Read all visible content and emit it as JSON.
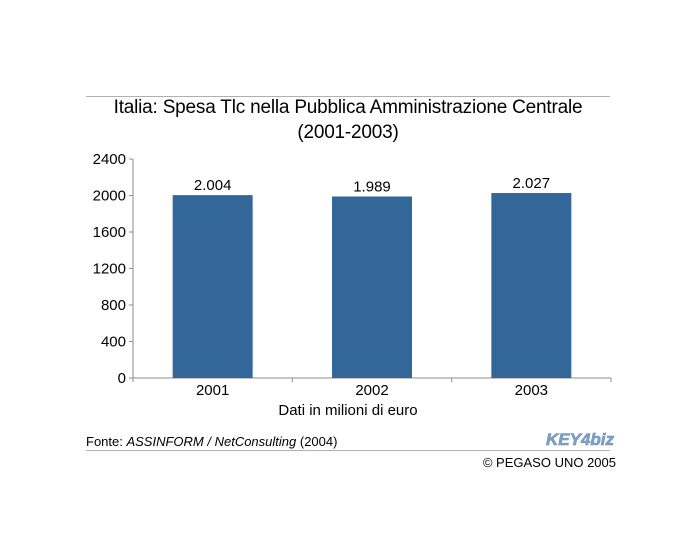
{
  "title_line1": "Italia: Spesa Tlc nella Pubblica Amministrazione Centrale",
  "title_line2": "(2001-2003)",
  "chart_data": {
    "type": "bar",
    "categories": [
      "2001",
      "2002",
      "2003"
    ],
    "values": [
      2004,
      1989,
      2027
    ],
    "data_labels": [
      "2.004",
      "1.989",
      "2.027"
    ],
    "xlabel": "Dati in milioni di euro",
    "ylabel": "",
    "ylim": [
      0,
      2400
    ],
    "yticks": [
      0,
      400,
      800,
      1200,
      1600,
      2000,
      2400
    ],
    "grid": false,
    "bar_color": "#336699"
  },
  "source": {
    "prefix": "Fonte: ",
    "name": "ASSINFORM / NetConsulting",
    "suffix": " (2004)"
  },
  "copyright": "© PEGASO UNO 2005",
  "logo": {
    "text_key": "KEY",
    "text_4": "4",
    "text_biz": "biz",
    "color": "#7f9fc5"
  }
}
